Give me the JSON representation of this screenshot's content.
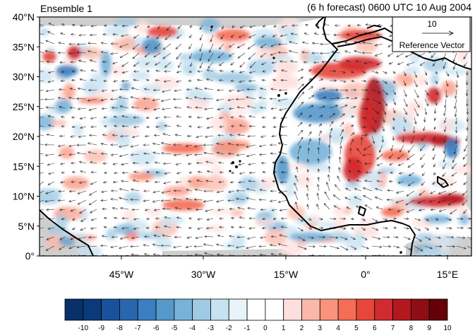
{
  "header": {
    "left_title": "Ensemble 1",
    "right_title": "(6 h forecast) 0600 UTC 10 Aug 2004"
  },
  "reference_vector": {
    "magnitude": "10",
    "label": "Reference Vector"
  },
  "y_axis": {
    "ticks": [
      "40°N",
      "35°N",
      "30°N",
      "25°N",
      "20°N",
      "15°N",
      "10°N",
      "5°N",
      "0°"
    ]
  },
  "x_axis": {
    "ticks": [
      "45°W",
      "30°W",
      "15°W",
      "0°",
      "15°E"
    ]
  },
  "colorbar": {
    "labels": [
      "-10",
      "-9",
      "-8",
      "-7",
      "-6",
      "-5",
      "-4",
      "-3",
      "-2",
      "-1",
      "0",
      "1",
      "2",
      "3",
      "4",
      "5",
      "6",
      "7",
      "8",
      "9",
      "10"
    ],
    "colors": [
      "#08306b",
      "#0b3a7a",
      "#1a519d",
      "#2866ae",
      "#3a7fc0",
      "#5598ca",
      "#78b2d8",
      "#9fcae3",
      "#c7e2f0",
      "#e8f3fa",
      "#ffffff",
      "#ffffff",
      "#fde0dd",
      "#fbb8a8",
      "#f9937d",
      "#f46d54",
      "#e8463b",
      "#d12a2f",
      "#b4181f",
      "#8e0e16",
      "#650008"
    ]
  },
  "map_colors": {
    "land_mask": "#cfcfcf",
    "coast": "#000000",
    "vector": "#222222"
  }
}
